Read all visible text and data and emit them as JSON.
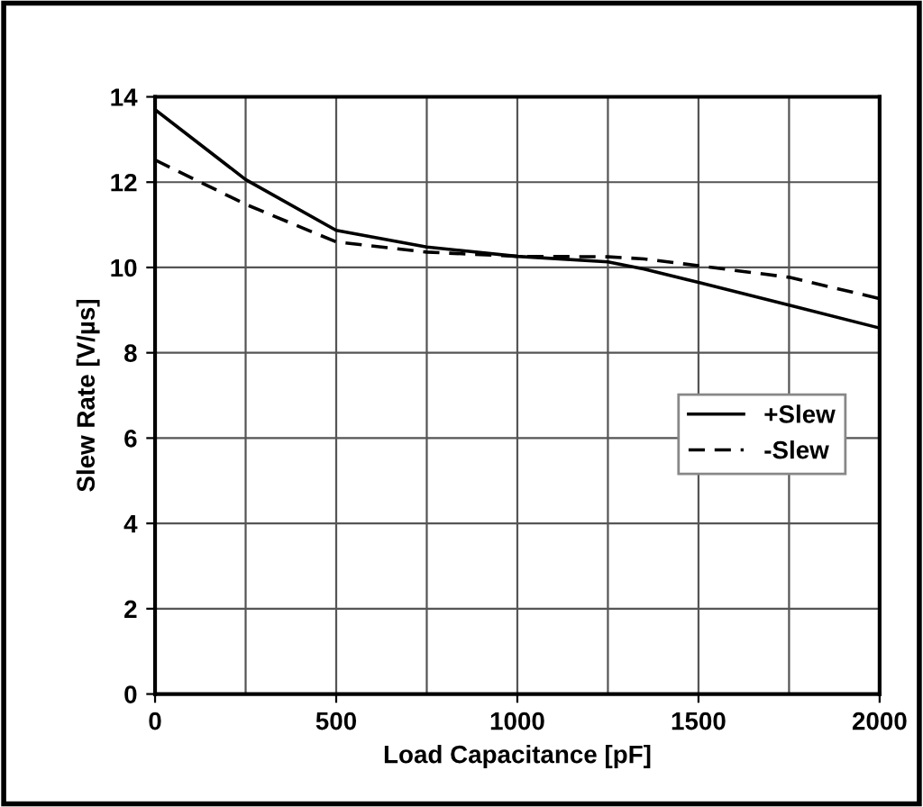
{
  "chart_data": {
    "type": "line",
    "xlabel": "Load Capacitance [pF]",
    "ylabel": "Slew Rate [V/µs]",
    "x": [
      0,
      250,
      500,
      750,
      1000,
      1250,
      1350,
      1500,
      1750,
      2000
    ],
    "series": [
      {
        "name": "+Slew",
        "color": "#000000",
        "line_style": "solid",
        "values": [
          13.7,
          12.06,
          10.87,
          10.48,
          10.26,
          10.13,
          9.96,
          9.65,
          9.12,
          8.58
        ]
      },
      {
        "name": "-Slew",
        "color": "#000000",
        "line_style": "dashed",
        "values": [
          12.52,
          11.48,
          10.6,
          10.36,
          10.26,
          10.25,
          10.2,
          10.04,
          9.77,
          9.27
        ]
      }
    ],
    "xlim": [
      0,
      2000
    ],
    "xticks": [
      0,
      500,
      1000,
      1500,
      2000
    ],
    "ylim": [
      0,
      14
    ],
    "yticks": [
      0,
      2,
      4,
      6,
      8,
      10,
      12,
      14
    ],
    "grid": true,
    "legend": "center right",
    "marker": "none"
  }
}
